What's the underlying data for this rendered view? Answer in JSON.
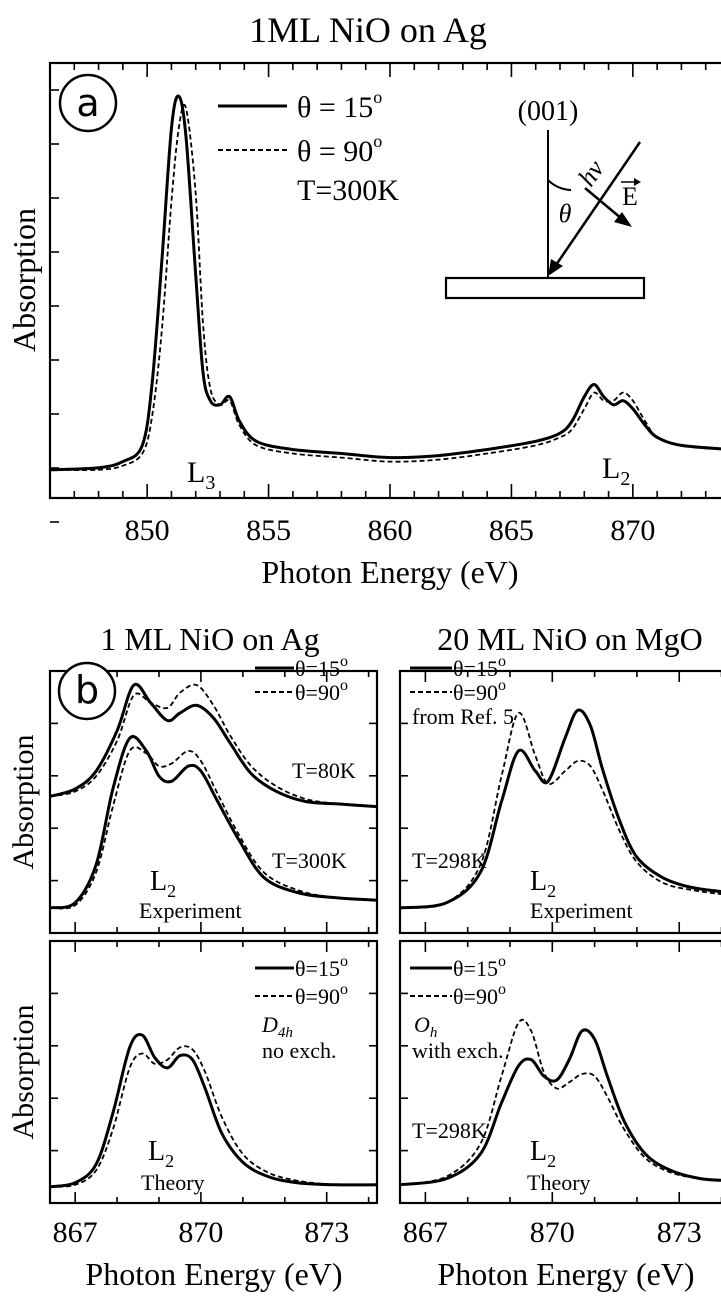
{
  "chart_data": [
    {
      "id": "a",
      "type": "line",
      "title": "1ML NiO on Ag",
      "panel_label": "a",
      "xlabel": "Photon Energy (eV)",
      "ylabel": "Absorption",
      "xlim": [
        846,
        874
      ],
      "ylim": [
        0,
        1.0
      ],
      "x_ticks": [
        "850",
        "855",
        "860",
        "865",
        "870"
      ],
      "legend": [
        {
          "label": "θ = 15",
          "style": "solid"
        },
        {
          "label": "θ = 90",
          "style": "dashed"
        }
      ],
      "legend_note": "T=300K",
      "annotations": [
        {
          "text": "L",
          "sub": "3",
          "x": 851.0,
          "y": 0.06
        },
        {
          "text": "L",
          "sub": "2",
          "x": 869.0,
          "y": 0.06
        }
      ],
      "inset": {
        "surface_label": "(001)",
        "theta_label": "θ",
        "photon_label": "hν",
        "field_label": "E"
      },
      "series": [
        {
          "name": "θ = 15",
          "style": "solid",
          "x": [
            846,
            848,
            849,
            849.8,
            850.2,
            850.6,
            851.0,
            851.3,
            851.6,
            852.0,
            852.3,
            852.6,
            853.0,
            853.4,
            853.8,
            854.5,
            856,
            858,
            860,
            862,
            864,
            866,
            867,
            867.5,
            868.0,
            868.4,
            868.8,
            869.2,
            869.6,
            870.0,
            870.5,
            871.0,
            872,
            874
          ],
          "y": [
            0.04,
            0.045,
            0.06,
            0.1,
            0.25,
            0.55,
            0.88,
            0.96,
            0.86,
            0.52,
            0.28,
            0.21,
            0.2,
            0.22,
            0.16,
            0.11,
            0.09,
            0.08,
            0.07,
            0.075,
            0.09,
            0.11,
            0.13,
            0.16,
            0.22,
            0.25,
            0.22,
            0.2,
            0.21,
            0.19,
            0.15,
            0.12,
            0.1,
            0.09
          ]
        },
        {
          "name": "θ = 90",
          "style": "dashed",
          "x": [
            846,
            848,
            849,
            849.8,
            850.2,
            850.6,
            851.0,
            851.3,
            851.6,
            852.0,
            852.3,
            852.6,
            853.0,
            853.4,
            853.8,
            854.5,
            856,
            858,
            860,
            862,
            864,
            866,
            867,
            867.5,
            868.0,
            868.4,
            868.8,
            869.2,
            869.6,
            870.0,
            870.5,
            871.0,
            872,
            874
          ],
          "y": [
            0.04,
            0.04,
            0.05,
            0.08,
            0.17,
            0.38,
            0.7,
            0.88,
            0.93,
            0.72,
            0.4,
            0.24,
            0.2,
            0.21,
            0.15,
            0.1,
            0.08,
            0.07,
            0.06,
            0.065,
            0.08,
            0.1,
            0.12,
            0.14,
            0.19,
            0.23,
            0.21,
            0.21,
            0.23,
            0.21,
            0.16,
            0.12,
            0.1,
            0.09
          ]
        }
      ]
    },
    {
      "id": "b-exp-ag",
      "type": "line",
      "title": "1 ML NiO on Ag",
      "panel_label": "b",
      "ylabel": "Absorption",
      "xlim": [
        866.4,
        874.2
      ],
      "ylim": [
        0,
        1.0
      ],
      "legend": [
        {
          "label": "θ=15",
          "style": "solid"
        },
        {
          "label": "θ=90",
          "style": "dashed"
        }
      ],
      "labels": [
        "T=80K",
        "T=300K",
        "Experiment"
      ],
      "edge": {
        "text": "L",
        "sub": "2"
      },
      "series": [
        {
          "name": "θ=15 (T=80K)",
          "style": "solid",
          "x": [
            866.4,
            867.0,
            867.5,
            868.0,
            868.4,
            868.8,
            869.2,
            869.5,
            869.9,
            870.3,
            870.7,
            871.2,
            871.8,
            872.5,
            873.3,
            874.2
          ],
          "y": [
            0.52,
            0.55,
            0.62,
            0.78,
            0.96,
            0.89,
            0.82,
            0.85,
            0.88,
            0.83,
            0.73,
            0.61,
            0.54,
            0.5,
            0.49,
            0.48
          ]
        },
        {
          "name": "θ=90 (T=80K)",
          "style": "dashed",
          "x": [
            866.4,
            867.0,
            867.5,
            868.0,
            868.4,
            868.8,
            869.2,
            869.5,
            869.9,
            870.3,
            870.7,
            871.2,
            871.8,
            872.5,
            873.3,
            874.2
          ],
          "y": [
            0.52,
            0.54,
            0.6,
            0.74,
            0.92,
            0.89,
            0.87,
            0.93,
            0.96,
            0.88,
            0.76,
            0.64,
            0.56,
            0.51,
            0.49,
            0.48
          ]
        },
        {
          "name": "θ=15 (T=300K)",
          "style": "solid",
          "x": [
            866.4,
            867.0,
            867.5,
            867.9,
            868.3,
            868.7,
            869.0,
            869.3,
            869.7,
            870.0,
            870.4,
            870.9,
            871.5,
            872.3,
            873.2,
            874.2
          ],
          "y": [
            0.08,
            0.1,
            0.25,
            0.55,
            0.75,
            0.7,
            0.6,
            0.58,
            0.64,
            0.62,
            0.5,
            0.35,
            0.2,
            0.14,
            0.12,
            0.11
          ]
        },
        {
          "name": "θ=90 (T=300K)",
          "style": "dashed",
          "x": [
            866.4,
            867.0,
            867.5,
            867.9,
            868.3,
            868.7,
            869.0,
            869.3,
            869.7,
            870.0,
            870.4,
            870.9,
            871.5,
            872.3,
            873.2,
            874.2
          ],
          "y": [
            0.08,
            0.09,
            0.22,
            0.48,
            0.7,
            0.69,
            0.64,
            0.65,
            0.7,
            0.66,
            0.53,
            0.37,
            0.22,
            0.15,
            0.12,
            0.11
          ]
        }
      ]
    },
    {
      "id": "b-exp-mgo",
      "type": "line",
      "title": "20 ML NiO on MgO",
      "xlim": [
        866.4,
        874.2
      ],
      "ylim": [
        0,
        1.0
      ],
      "legend": [
        {
          "label": "θ=15",
          "style": "solid"
        },
        {
          "label": "θ=90",
          "style": "dashed"
        }
      ],
      "labels": [
        "from Ref. 5",
        "T=298K",
        "Experiment"
      ],
      "edge": {
        "text": "L",
        "sub": "2"
      },
      "series": [
        {
          "name": "θ=15",
          "style": "solid",
          "x": [
            866.4,
            867.5,
            868.3,
            868.8,
            869.2,
            869.6,
            869.9,
            870.3,
            870.6,
            870.9,
            871.2,
            871.6,
            872.0,
            872.6,
            873.3,
            874.2
          ],
          "y": [
            0.08,
            0.1,
            0.22,
            0.5,
            0.7,
            0.62,
            0.58,
            0.75,
            0.86,
            0.8,
            0.62,
            0.42,
            0.28,
            0.2,
            0.16,
            0.14
          ]
        },
        {
          "name": "θ=90",
          "style": "dashed",
          "x": [
            866.4,
            867.5,
            868.3,
            868.8,
            869.2,
            869.6,
            869.9,
            870.3,
            870.6,
            870.9,
            871.2,
            871.6,
            872.0,
            872.6,
            873.3,
            874.2
          ],
          "y": [
            0.08,
            0.1,
            0.25,
            0.6,
            0.85,
            0.68,
            0.57,
            0.62,
            0.66,
            0.64,
            0.54,
            0.38,
            0.26,
            0.18,
            0.15,
            0.13
          ]
        }
      ]
    },
    {
      "id": "b-th-ag",
      "type": "line",
      "xlabel": "Photon Energy (eV)",
      "ylabel": "Absorption",
      "xlim": [
        866.4,
        874.2
      ],
      "ylim": [
        0,
        1.0
      ],
      "x_ticks": [
        "867",
        "870",
        "873"
      ],
      "legend": [
        {
          "label": "θ=15",
          "style": "solid"
        },
        {
          "label": "θ=90",
          "style": "dashed"
        }
      ],
      "labels": [
        "D",
        "4h",
        "no exch.",
        "Theory"
      ],
      "edge": {
        "text": "L",
        "sub": "2"
      },
      "series": [
        {
          "name": "θ=15",
          "style": "solid",
          "x": [
            866.4,
            867.0,
            867.5,
            867.9,
            868.3,
            868.6,
            868.9,
            869.2,
            869.5,
            869.8,
            870.1,
            870.5,
            871.0,
            871.6,
            872.3,
            873.2,
            874.2
          ],
          "y": [
            0.04,
            0.06,
            0.15,
            0.4,
            0.72,
            0.78,
            0.67,
            0.62,
            0.68,
            0.66,
            0.52,
            0.3,
            0.16,
            0.09,
            0.06,
            0.05,
            0.05
          ]
        },
        {
          "name": "θ=90",
          "style": "dashed",
          "x": [
            866.4,
            867.0,
            867.5,
            867.9,
            868.3,
            868.6,
            868.9,
            869.2,
            869.5,
            869.8,
            870.1,
            870.5,
            871.0,
            871.6,
            872.3,
            873.2,
            874.2
          ],
          "y": [
            0.04,
            0.05,
            0.12,
            0.32,
            0.62,
            0.69,
            0.64,
            0.66,
            0.72,
            0.71,
            0.6,
            0.38,
            0.2,
            0.11,
            0.07,
            0.05,
            0.05
          ]
        }
      ]
    },
    {
      "id": "b-th-mgo",
      "type": "line",
      "xlabel": "Photon Energy (eV)",
      "xlim": [
        866.4,
        874.2
      ],
      "ylim": [
        0,
        1.0
      ],
      "x_ticks": [
        "867",
        "870",
        "873"
      ],
      "legend": [
        {
          "label": "θ=15",
          "style": "solid"
        },
        {
          "label": "θ=90",
          "style": "dashed"
        }
      ],
      "labels": [
        "O",
        "h",
        "with exch.",
        "T=298K",
        "Theory"
      ],
      "edge": {
        "text": "L",
        "sub": "2"
      },
      "series": [
        {
          "name": "θ=15",
          "style": "solid",
          "x": [
            866.4,
            867.5,
            868.3,
            868.8,
            869.2,
            869.5,
            869.8,
            870.1,
            870.4,
            870.7,
            871.0,
            871.3,
            871.7,
            872.2,
            872.8,
            873.5,
            874.2
          ],
          "y": [
            0.05,
            0.08,
            0.2,
            0.45,
            0.63,
            0.66,
            0.58,
            0.56,
            0.66,
            0.8,
            0.76,
            0.58,
            0.36,
            0.2,
            0.12,
            0.08,
            0.07
          ]
        },
        {
          "name": "θ=90",
          "style": "dashed",
          "x": [
            866.4,
            867.5,
            868.3,
            868.8,
            869.2,
            869.5,
            869.8,
            870.1,
            870.4,
            870.7,
            871.0,
            871.3,
            871.7,
            872.2,
            872.8,
            873.5,
            874.2
          ],
          "y": [
            0.05,
            0.09,
            0.25,
            0.58,
            0.84,
            0.8,
            0.6,
            0.52,
            0.55,
            0.59,
            0.58,
            0.48,
            0.32,
            0.18,
            0.11,
            0.08,
            0.07
          ]
        }
      ]
    }
  ]
}
